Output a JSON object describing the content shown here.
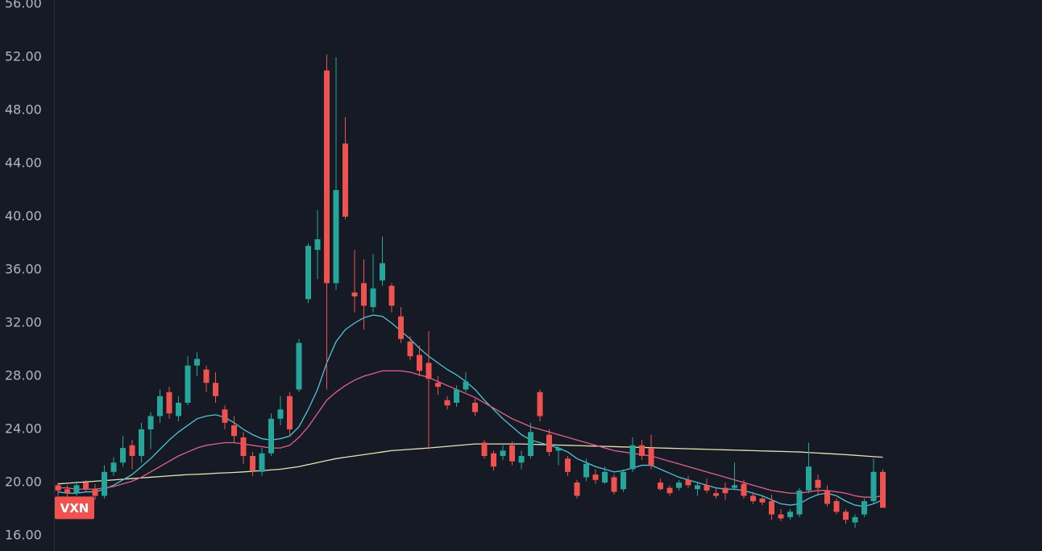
{
  "chart_data": {
    "type": "candlestick",
    "ylim": [
      14.85,
      56.3
    ],
    "yticks": [
      {
        "value": 16,
        "label": "16.00"
      },
      {
        "value": 20,
        "label": "20.00"
      },
      {
        "value": 24,
        "label": "24.00"
      },
      {
        "value": 28,
        "label": "28.00"
      },
      {
        "value": 32,
        "label": "32.00"
      },
      {
        "value": 36,
        "label": "36.00"
      },
      {
        "value": 40,
        "label": "40.00"
      },
      {
        "value": 44,
        "label": "44.00"
      },
      {
        "value": 48,
        "label": "48.00"
      },
      {
        "value": 52,
        "label": "52.00"
      },
      {
        "value": 56,
        "label": "56.00"
      }
    ],
    "up_color": "#26a69a",
    "down_color": "#ef5350",
    "series": [
      {
        "name": "VXN",
        "open": [
          19.8,
          19.5,
          19.2,
          20.0,
          19.5,
          19.0,
          20.8,
          21.5,
          22.8,
          22.0,
          24.0,
          25.0,
          26.8,
          25.0,
          26.0,
          28.8,
          28.5,
          27.5,
          25.5,
          24.3,
          23.4,
          22.0,
          20.8,
          22.2,
          24.8,
          26.5,
          27.0,
          33.8,
          37.5,
          51.0,
          35.0,
          45.5,
          34.3,
          35.0,
          33.2,
          35.2,
          34.8,
          32.5,
          30.6,
          29.6,
          29.0,
          27.5,
          26.2,
          26.0,
          27.0,
          26.0,
          23.0,
          22.2,
          22.0,
          22.8,
          21.5,
          22.0,
          26.8,
          23.6,
          22.4,
          21.8,
          20.0,
          20.4,
          20.6,
          20.0,
          20.4,
          19.5,
          21.0,
          22.8,
          22.6,
          20.0,
          19.6,
          19.6,
          20.2,
          19.5,
          19.8,
          19.2,
          19.6,
          19.6,
          19.9,
          19.0,
          18.8,
          18.6,
          17.6,
          17.4,
          17.6,
          19.4,
          20.2,
          19.4,
          18.6,
          17.8,
          17.0,
          17.6,
          18.6,
          20.8
        ],
        "high": [
          20.0,
          19.8,
          20.1,
          20.2,
          19.9,
          21.3,
          21.9,
          23.5,
          23.2,
          24.5,
          25.3,
          27.0,
          27.2,
          26.5,
          29.5,
          29.8,
          28.8,
          28.3,
          25.8,
          25.0,
          23.8,
          22.3,
          22.6,
          25.2,
          26.5,
          26.8,
          30.8,
          38.0,
          40.5,
          52.2,
          52.0,
          47.5,
          37.5,
          36.8,
          37.2,
          38.5,
          35.0,
          33.2,
          31.0,
          30.3,
          31.4,
          28.0,
          26.5,
          27.3,
          28.3,
          26.3,
          23.2,
          22.4,
          22.8,
          23.1,
          22.4,
          24.5,
          27.0,
          24.0,
          22.8,
          22.0,
          20.2,
          21.8,
          21.0,
          21.2,
          20.6,
          21.0,
          23.4,
          23.2,
          23.6,
          20.3,
          19.8,
          20.2,
          20.5,
          20.0,
          20.3,
          19.6,
          20.0,
          21.5,
          20.2,
          19.3,
          19.0,
          19.1,
          18.0,
          18.0,
          19.6,
          23.0,
          20.6,
          19.8,
          18.8,
          18.0,
          17.6,
          18.8,
          21.8,
          21.0
        ],
        "low": [
          19.0,
          18.9,
          19.0,
          19.3,
          18.7,
          18.8,
          20.5,
          21.2,
          21.0,
          21.5,
          22.5,
          24.5,
          24.8,
          24.6,
          25.8,
          28.0,
          26.8,
          26.0,
          24.0,
          23.0,
          21.4,
          20.5,
          20.5,
          22.0,
          24.3,
          23.6,
          26.8,
          33.5,
          35.3,
          27.0,
          34.5,
          39.8,
          32.8,
          31.5,
          32.8,
          34.8,
          32.8,
          30.5,
          29.2,
          28.0,
          22.5,
          26.6,
          25.5,
          25.7,
          26.8,
          25.0,
          21.8,
          20.9,
          21.7,
          21.3,
          21.0,
          21.8,
          24.6,
          22.0,
          21.3,
          20.5,
          18.8,
          20.1,
          19.9,
          19.9,
          19.1,
          19.3,
          20.8,
          21.7,
          21.0,
          19.4,
          19.0,
          19.4,
          19.6,
          19.0,
          19.2,
          18.8,
          18.7,
          19.4,
          18.8,
          18.4,
          18.3,
          17.2,
          17.1,
          17.2,
          17.4,
          19.2,
          19.0,
          18.2,
          17.6,
          16.9,
          16.6,
          17.4,
          18.4,
          18.1
        ],
        "close": [
          19.4,
          19.2,
          19.8,
          19.5,
          19.0,
          20.8,
          21.5,
          22.6,
          22.0,
          24.0,
          25.0,
          26.5,
          25.2,
          26.0,
          28.8,
          29.3,
          27.5,
          26.5,
          24.5,
          23.5,
          22.0,
          20.9,
          22.2,
          24.8,
          25.5,
          24.0,
          30.5,
          37.8,
          38.3,
          35.0,
          42.0,
          40.0,
          34.0,
          33.3,
          34.6,
          36.5,
          33.3,
          30.8,
          29.5,
          28.4,
          27.8,
          27.2,
          25.8,
          27.0,
          27.6,
          25.3,
          22.0,
          21.2,
          22.4,
          21.6,
          22.0,
          23.8,
          25.0,
          22.3,
          22.6,
          20.8,
          19.0,
          21.4,
          20.2,
          20.8,
          19.3,
          20.8,
          22.8,
          22.0,
          21.3,
          19.5,
          19.2,
          20.0,
          19.8,
          19.8,
          19.4,
          19.0,
          19.2,
          19.8,
          19.0,
          18.6,
          18.5,
          17.6,
          17.3,
          17.8,
          19.4,
          21.2,
          19.6,
          18.4,
          17.8,
          17.2,
          17.4,
          18.6,
          20.8,
          18.1
        ]
      }
    ],
    "lines": [
      {
        "color": "#e6e2b3",
        "values": [
          19.9,
          19.95,
          20.0,
          20.05,
          20.1,
          20.15,
          20.2,
          20.25,
          20.3,
          20.35,
          20.4,
          20.45,
          20.5,
          20.55,
          20.6,
          20.62,
          20.65,
          20.7,
          20.73,
          20.76,
          20.8,
          20.85,
          20.9,
          20.95,
          21.0,
          21.1,
          21.2,
          21.35,
          21.5,
          21.65,
          21.8,
          21.9,
          22.0,
          22.1,
          22.2,
          22.3,
          22.4,
          22.45,
          22.5,
          22.55,
          22.6,
          22.66,
          22.72,
          22.78,
          22.84,
          22.9,
          22.9,
          22.9,
          22.9,
          22.9,
          22.9,
          22.88,
          22.86,
          22.84,
          22.82,
          22.8,
          22.78,
          22.76,
          22.74,
          22.72,
          22.7,
          22.68,
          22.66,
          22.64,
          22.62,
          22.6,
          22.58,
          22.56,
          22.54,
          22.52,
          22.5,
          22.48,
          22.46,
          22.44,
          22.42,
          22.4,
          22.38,
          22.36,
          22.34,
          22.32,
          22.3,
          22.26,
          22.22,
          22.18,
          22.14,
          22.1,
          22.05,
          22.0,
          21.95,
          21.9
        ]
      },
      {
        "color": "#4fc3d7",
        "values": [
          19.3,
          19.2,
          19.2,
          19.3,
          19.3,
          19.5,
          19.8,
          20.2,
          20.6,
          21.2,
          21.8,
          22.5,
          23.2,
          23.8,
          24.3,
          24.8,
          25.0,
          25.1,
          24.9,
          24.5,
          24.0,
          23.6,
          23.3,
          23.2,
          23.3,
          23.5,
          24.2,
          25.5,
          27.0,
          29.0,
          30.6,
          31.5,
          32.0,
          32.4,
          32.6,
          32.5,
          32.0,
          31.4,
          30.8,
          30.1,
          29.5,
          29.0,
          28.5,
          28.1,
          27.6,
          27.0,
          26.2,
          25.5,
          24.8,
          24.2,
          23.6,
          23.2,
          23.0,
          22.8,
          22.6,
          22.3,
          21.8,
          21.5,
          21.2,
          21.0,
          20.8,
          20.9,
          21.1,
          21.3,
          21.3,
          21.0,
          20.7,
          20.4,
          20.2,
          20.0,
          19.8,
          19.6,
          19.5,
          19.5,
          19.4,
          19.2,
          19.0,
          18.7,
          18.4,
          18.3,
          18.4,
          18.8,
          19.1,
          19.2,
          19.0,
          18.6,
          18.3,
          18.2,
          18.4,
          18.7
        ]
      },
      {
        "color": "#e0608f",
        "values": [
          19.6,
          19.6,
          19.5,
          19.5,
          19.5,
          19.6,
          19.7,
          19.9,
          20.1,
          20.4,
          20.8,
          21.2,
          21.6,
          22.0,
          22.3,
          22.6,
          22.8,
          22.9,
          23.0,
          23.0,
          22.9,
          22.8,
          22.7,
          22.6,
          22.6,
          22.8,
          23.4,
          24.2,
          25.2,
          26.2,
          26.8,
          27.3,
          27.7,
          28.0,
          28.2,
          28.4,
          28.4,
          28.4,
          28.3,
          28.1,
          27.9,
          27.6,
          27.3,
          27.0,
          26.7,
          26.4,
          26.0,
          25.6,
          25.2,
          24.8,
          24.5,
          24.2,
          24.0,
          23.8,
          23.6,
          23.4,
          23.2,
          23.0,
          22.8,
          22.6,
          22.4,
          22.3,
          22.2,
          22.1,
          22.0,
          21.8,
          21.6,
          21.4,
          21.2,
          21.0,
          20.8,
          20.6,
          20.4,
          20.2,
          20.0,
          19.8,
          19.6,
          19.4,
          19.3,
          19.2,
          19.2,
          19.3,
          19.4,
          19.4,
          19.3,
          19.2,
          19.0,
          18.9,
          18.9,
          19.0
        ]
      }
    ]
  }
}
